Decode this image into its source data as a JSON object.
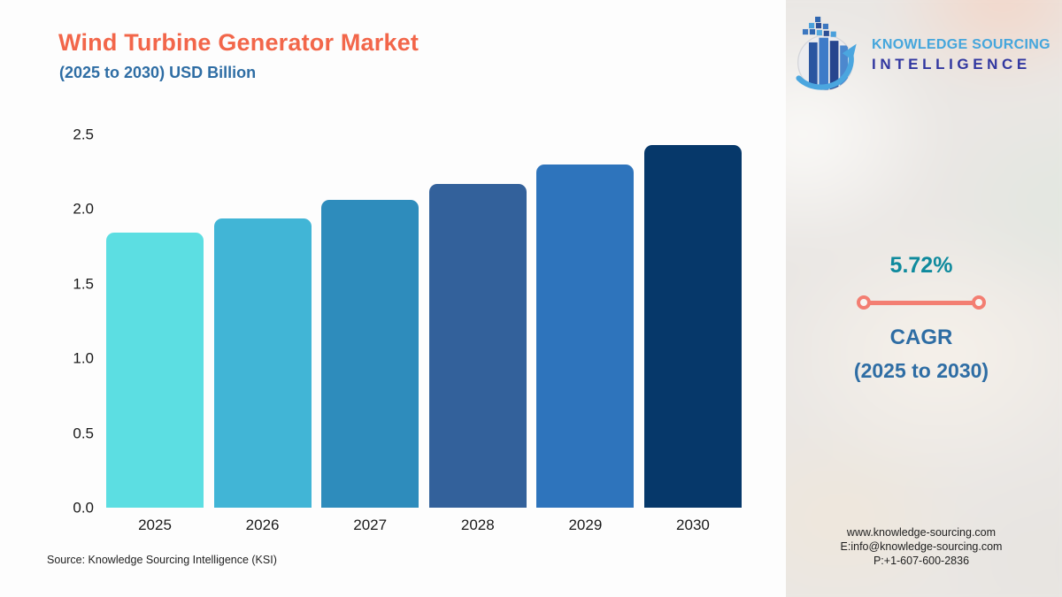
{
  "header": {
    "title": "Wind Turbine Generator Market",
    "subtitle": "(2025 to 2030) USD Billion"
  },
  "chart_data": {
    "type": "bar",
    "title": "Wind Turbine Generator Market (2025 to 2030) USD Billion",
    "categories": [
      "2025",
      "2026",
      "2027",
      "2028",
      "2029",
      "2030"
    ],
    "values": [
      1.84,
      1.94,
      2.06,
      2.17,
      2.3,
      2.43
    ],
    "bar_colors": [
      "#5CDEE2",
      "#41B5D6",
      "#2E8CBC",
      "#33619B",
      "#2E74BC",
      "#06386A"
    ],
    "xlabel": "",
    "ylabel": "",
    "ylim": [
      0,
      2.5
    ],
    "yticks": [
      "0.0",
      "0.5",
      "1.0",
      "1.5",
      "2.0",
      "2.5"
    ],
    "grid": false,
    "legend": false
  },
  "source_note": "Source: Knowledge Sourcing Intelligence (KSI)",
  "logo": {
    "line1": "KNOWLEDGE SOURCING",
    "line2": "INTELLIGENCE"
  },
  "cagr": {
    "value": "5.72%",
    "label": "CAGR",
    "period": "(2025 to 2030)"
  },
  "contact": {
    "website": "www.knowledge-sourcing.com",
    "email": "E:info@knowledge-sourcing.com",
    "phone": "P:+1-607-600-2836"
  },
  "colors": {
    "title_orange": "#F2664A",
    "subtitle_blue": "#2E6DA4",
    "cagr_teal": "#0F8A9D",
    "cagr_line_coral": "#F37E72",
    "logo_light_blue": "#45A6DC",
    "logo_navy": "#3137A0",
    "card_background": "#FDFDFD"
  }
}
